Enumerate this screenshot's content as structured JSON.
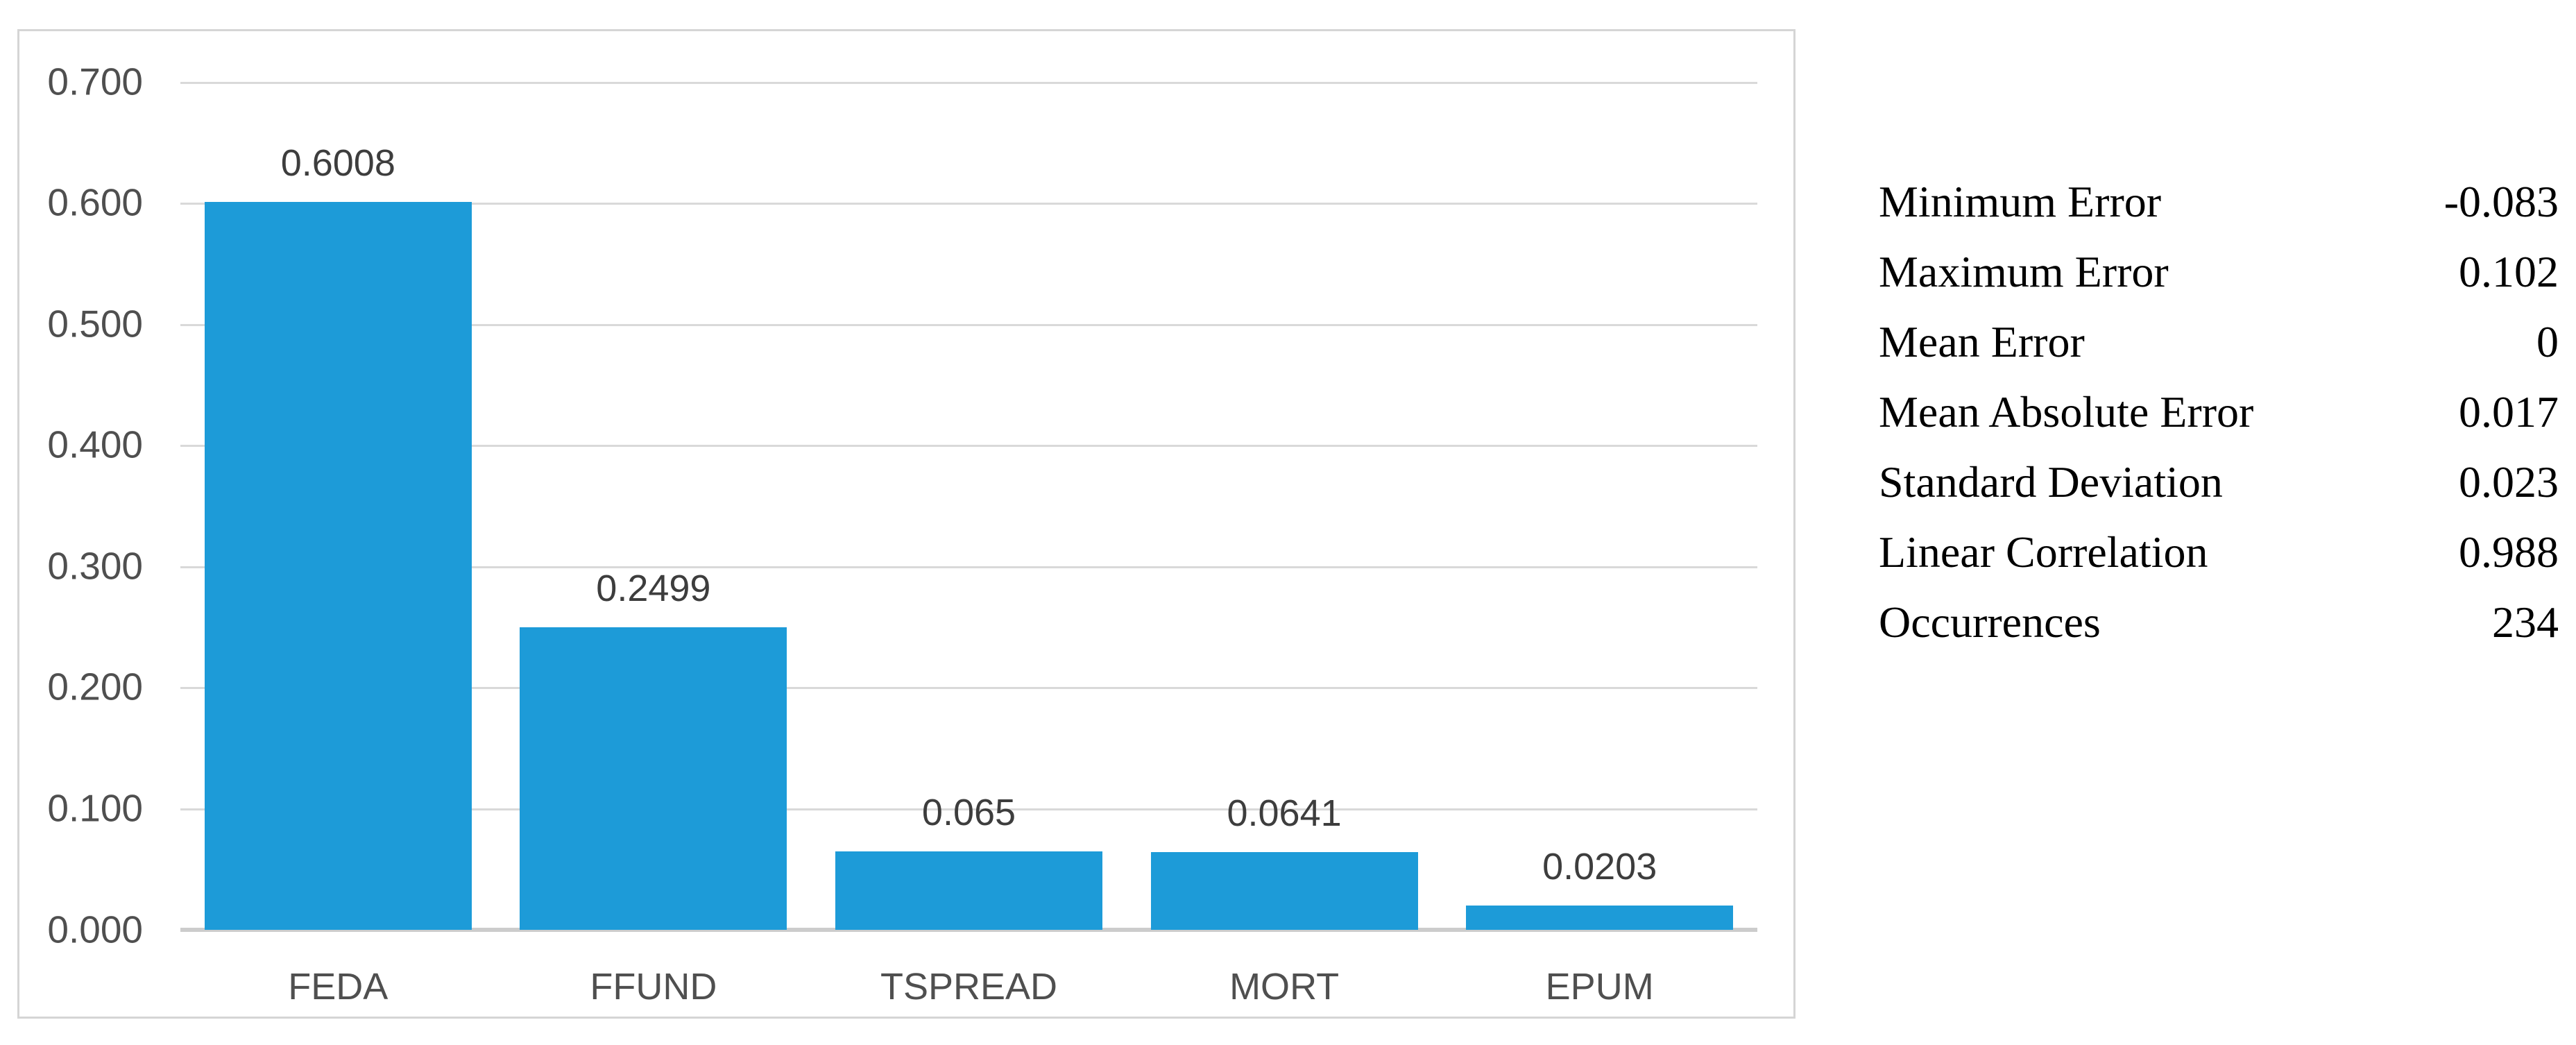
{
  "chart_data": {
    "type": "bar",
    "title": "",
    "xlabel": "",
    "ylabel": "",
    "categories": [
      "FEDA",
      "FFUND",
      "TSPREAD",
      "MORT",
      "EPUM"
    ],
    "values": [
      0.6008,
      0.2499,
      0.065,
      0.0641,
      0.0203
    ],
    "data_labels": [
      "0.6008",
      "0.2499",
      "0.065",
      "0.0641",
      "0.0203"
    ],
    "ylim": [
      0,
      0.7
    ],
    "y_ticks": [
      "0.700",
      "0.600",
      "0.500",
      "0.400",
      "0.300",
      "0.200",
      "0.100",
      "0.000"
    ],
    "grid": true,
    "legend": "none",
    "bar_color": "#1d9bd8"
  },
  "stats": {
    "rows": [
      {
        "label": "Minimum Error",
        "value": "-0.083"
      },
      {
        "label": "Maximum Error",
        "value": "0.102"
      },
      {
        "label": "Mean Error",
        "value": "0"
      },
      {
        "label": "Mean Absolute Error",
        "value": "0.017"
      },
      {
        "label": "Standard Deviation",
        "value": "0.023"
      },
      {
        "label": "Linear Correlation",
        "value": "0.988"
      },
      {
        "label": "Occurrences",
        "value": "234"
      }
    ]
  }
}
